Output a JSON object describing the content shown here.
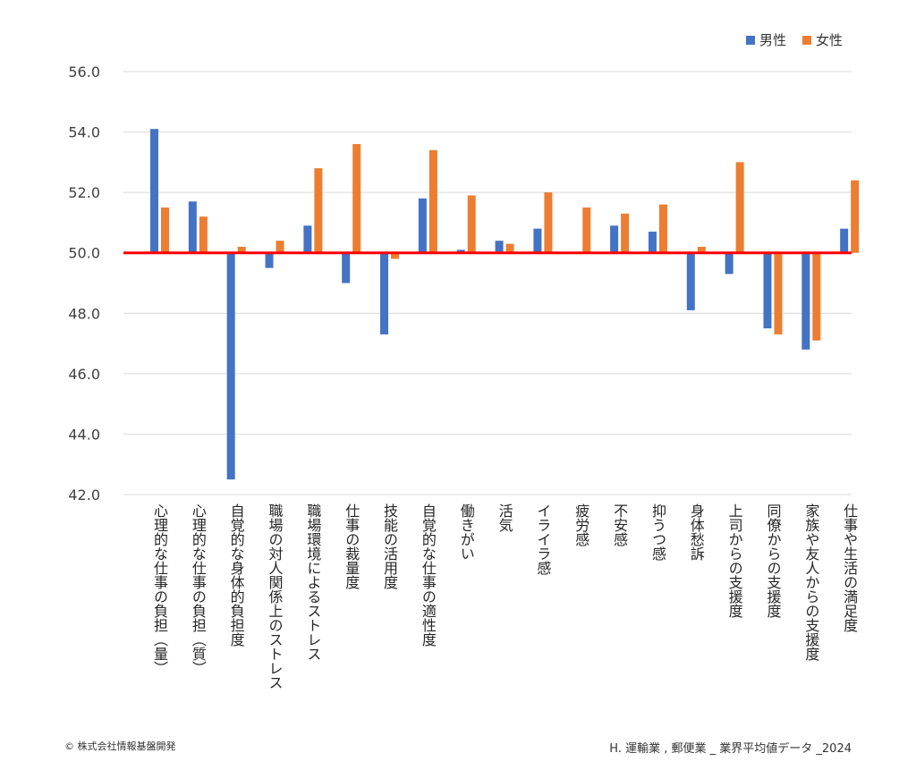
{
  "chart_data": {
    "type": "bar",
    "categories": [
      "心理的な仕事の負担（量）",
      "心理的な仕事の負担（質）",
      "自覚的な身体的負担度",
      "職場の対人関係上のストレス",
      "職場環境によるストレス",
      "仕事の裁量度",
      "技能の活用度",
      "自覚的な仕事の適性度",
      "働きがい",
      "活気",
      "イライラ感",
      "疲労感",
      "不安感",
      "抑うつ感",
      "身体愁訴",
      "上司からの支援度",
      "同僚からの支援度",
      "家族や友人からの支援度",
      "仕事や生活の満足度"
    ],
    "series": [
      {
        "name": "男性",
        "color": "#4472C4",
        "values": [
          54.1,
          51.7,
          42.5,
          49.5,
          50.9,
          49.0,
          47.3,
          51.8,
          50.1,
          50.4,
          50.8,
          50.0,
          50.9,
          50.7,
          48.1,
          49.3,
          47.5,
          46.8,
          50.8
        ]
      },
      {
        "name": "女性",
        "color": "#ED7D31",
        "values": [
          51.5,
          51.2,
          50.2,
          50.4,
          52.8,
          53.6,
          49.8,
          53.4,
          51.9,
          50.3,
          52.0,
          51.5,
          51.3,
          51.6,
          50.2,
          53.0,
          47.3,
          47.1,
          52.4
        ]
      }
    ],
    "ylim": [
      42.0,
      56.0
    ],
    "yticks": [
      "42.0",
      "44.0",
      "46.0",
      "48.0",
      "50.0",
      "52.0",
      "54.0",
      "56.0"
    ],
    "baseline": 50.0,
    "baseline_color": "#FF0000",
    "grid": true,
    "legend_position": "top-right"
  },
  "footer": {
    "copyright": "© 株式会社情報基盤開発",
    "source": "H. 運輸業 , 郵便業 _ 業界平均値データ _2024"
  }
}
